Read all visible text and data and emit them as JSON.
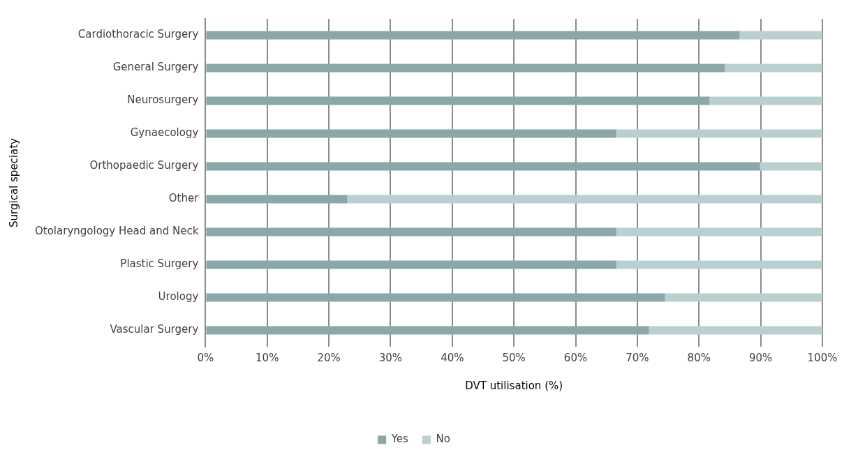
{
  "chart_data": {
    "type": "bar",
    "orientation": "horizontal",
    "stacked": true,
    "xlabel": "DVT utilisation (%)",
    "ylabel": "Surgical speciaty",
    "categories": [
      "Cardiothoracic Surgery",
      "General Surgery",
      "Neurosurgery",
      "Gynaecology",
      "Orthopaedic Surgery",
      "Other",
      "Otolaryngology Head and Neck",
      "Plastic Surgery",
      "Urology",
      "Vascular Surgery"
    ],
    "series": [
      {
        "name": "Yes",
        "color": "#8aa8a7",
        "values": [
          86.6,
          84.2,
          81.7,
          66.6,
          89.9,
          23.0,
          66.6,
          66.6,
          74.5,
          71.9
        ]
      },
      {
        "name": "No",
        "color": "#b9cfd0",
        "values": [
          13.4,
          15.8,
          18.3,
          33.4,
          10.1,
          77.0,
          33.4,
          33.4,
          25.5,
          28.1
        ]
      }
    ],
    "xlim": [
      0,
      100
    ],
    "xticks": [
      {
        "value": 0,
        "label": "0%"
      },
      {
        "value": 10,
        "label": "10%"
      },
      {
        "value": 20,
        "label": "20%"
      },
      {
        "value": 30,
        "label": "30%"
      },
      {
        "value": 40,
        "label": "40%"
      },
      {
        "value": 50,
        "label": "50%"
      },
      {
        "value": 60,
        "label": "60%"
      },
      {
        "value": 70,
        "label": "70%"
      },
      {
        "value": 80,
        "label": "80%"
      },
      {
        "value": 90,
        "label": "90%"
      },
      {
        "value": 100,
        "label": "100%"
      }
    ],
    "grid": "x",
    "legend": "bottom"
  }
}
